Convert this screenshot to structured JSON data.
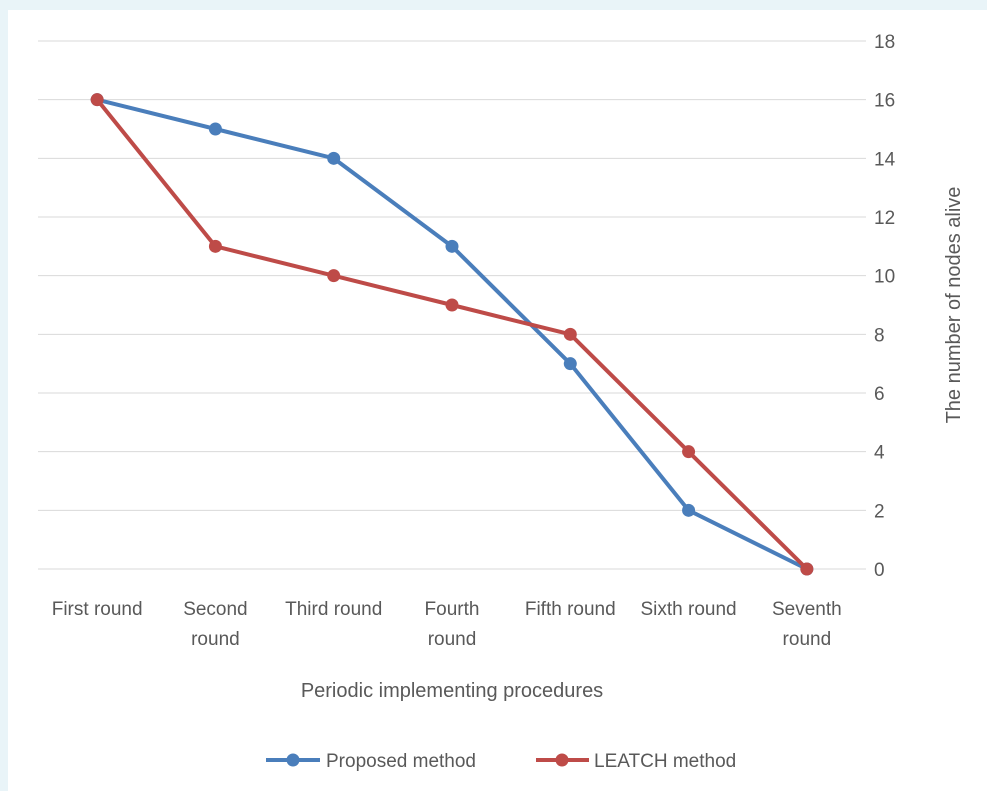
{
  "chart_data": {
    "type": "line",
    "categories": [
      [
        "First round"
      ],
      [
        "Second",
        "round"
      ],
      [
        "Third round"
      ],
      [
        "Fourth",
        "round"
      ],
      [
        "Fifth round"
      ],
      [
        "Sixth round"
      ],
      [
        "Seventh",
        "round"
      ]
    ],
    "series": [
      {
        "name": "Proposed method",
        "color": "#4a7ebb",
        "values": [
          16,
          15,
          14,
          11,
          7,
          2,
          0
        ]
      },
      {
        "name": "LEATCH method",
        "color": "#be4b48",
        "values": [
          16,
          11,
          10,
          9,
          8,
          4,
          0
        ]
      }
    ],
    "xlabel": "Periodic implementing procedures",
    "ylabel": "The number of nodes alive",
    "ylim": [
      0,
      18
    ],
    "yticks": [
      0,
      2,
      4,
      6,
      8,
      10,
      12,
      14,
      16,
      18
    ],
    "y_axis_side": "right",
    "grid": true,
    "legend_position": "bottom"
  },
  "colors": {
    "gridline": "#d9d9d9",
    "text": "#595959"
  }
}
